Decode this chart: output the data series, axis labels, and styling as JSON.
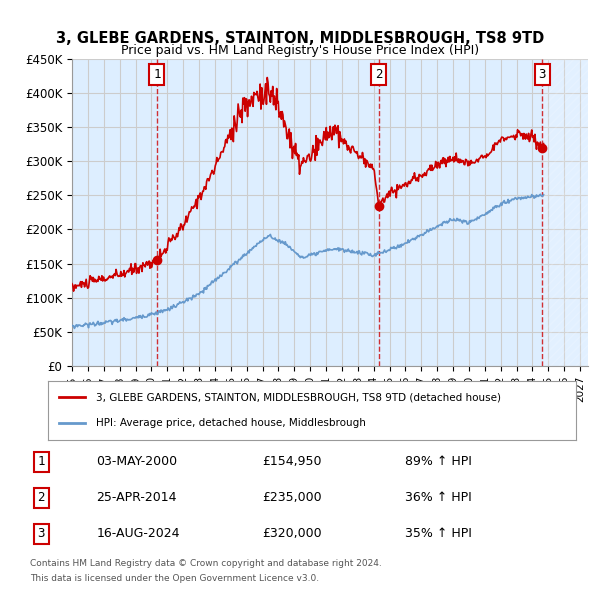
{
  "title1": "3, GLEBE GARDENS, STAINTON, MIDDLESBROUGH, TS8 9TD",
  "title2": "Price paid vs. HM Land Registry's House Price Index (HPI)",
  "ylabel": "",
  "xlabel": "",
  "ylim": [
    0,
    450000
  ],
  "xlim_start": 1995.0,
  "xlim_end": 2027.5,
  "yticks": [
    0,
    50000,
    100000,
    150000,
    200000,
    250000,
    300000,
    350000,
    400000,
    450000
  ],
  "ytick_labels": [
    "£0",
    "£50K",
    "£100K",
    "£150K",
    "£200K",
    "£250K",
    "£300K",
    "£350K",
    "£400K",
    "£450K"
  ],
  "xticks": [
    1995,
    1996,
    1997,
    1998,
    1999,
    2000,
    2001,
    2002,
    2003,
    2004,
    2005,
    2006,
    2007,
    2008,
    2009,
    2010,
    2011,
    2012,
    2013,
    2014,
    2015,
    2016,
    2017,
    2018,
    2019,
    2020,
    2021,
    2022,
    2023,
    2024,
    2025,
    2026,
    2027
  ],
  "transaction_dates": [
    2000.34,
    2014.32,
    2024.62
  ],
  "transaction_prices": [
    154950,
    235000,
    320000
  ],
  "transaction_labels": [
    "1",
    "2",
    "3"
  ],
  "transaction_date_strings": [
    "03-MAY-2000",
    "25-APR-2014",
    "16-AUG-2024"
  ],
  "transaction_price_strings": [
    "£154,950",
    "£235,000",
    "£320,000"
  ],
  "transaction_hpi_strings": [
    "89% ↑ HPI",
    "36% ↑ HPI",
    "35% ↑ HPI"
  ],
  "line_color_red": "#cc0000",
  "line_color_blue": "#6699cc",
  "marker_color_red": "#cc0000",
  "grid_color": "#cccccc",
  "bg_color": "#ddeeff",
  "hatch_start": 2024.62,
  "legend_label_red": "3, GLEBE GARDENS, STAINTON, MIDDLESBROUGH, TS8 9TD (detached house)",
  "legend_label_blue": "HPI: Average price, detached house, Middlesbrough",
  "footer1": "Contains HM Land Registry data © Crown copyright and database right 2024.",
  "footer2": "This data is licensed under the Open Government Licence v3.0."
}
